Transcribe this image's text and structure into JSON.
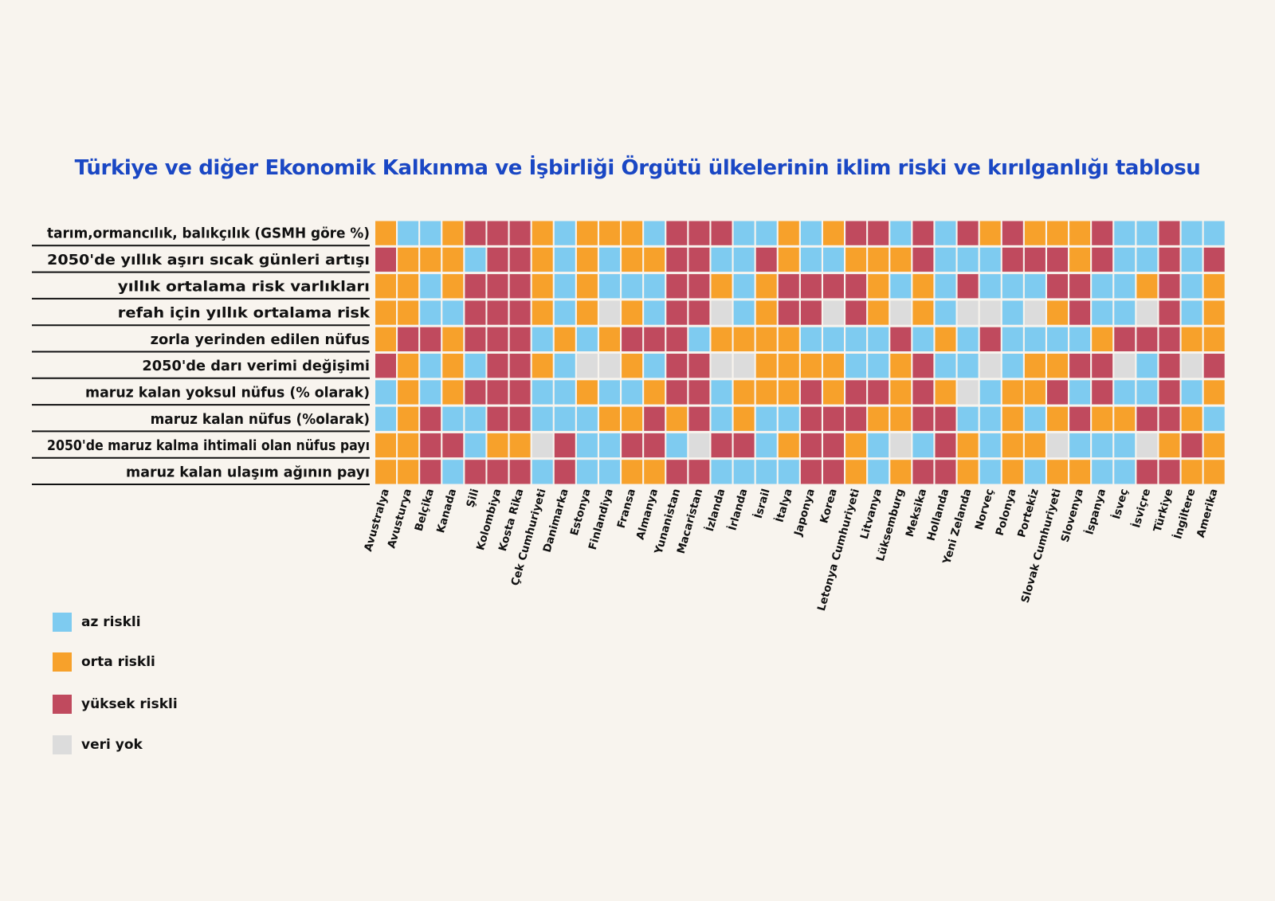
{
  "chart_data": {
    "type": "heatmap",
    "title": "Türkiye ve diğer Ekonomik Kalkınma ve İşbirliği Örgütü ülkelerinin iklim riski ve kırılganlığı tablosu",
    "rows": [
      "tarım,ormancılık, balıkçılık (GSMH göre %)",
      "2050'de yıllık aşırı sıcak günleri artışı",
      "yıllık ortalama risk varlıkları",
      "refah için yıllık ortalama risk",
      "zorla yerinden edilen nüfus",
      "2050'de darı verimi değişimi",
      "maruz kalan yoksul nüfus (% olarak)",
      "maruz kalan nüfus (%olarak)",
      "2050'de maruz kalma ihtimali olan nüfus payı",
      "maruz kalan ulaşım ağının payı"
    ],
    "columns": [
      "Avustralya",
      "Avusturya",
      "Belçika",
      "Kanada",
      "Şili",
      "Kolombiya",
      "Kosta Rika",
      "Çek Cumhuriyeti",
      "Danimarka",
      "Estonya",
      "Finlandiya",
      "Fransa",
      "Almanya",
      "Yunanistan",
      "Macaristan",
      "İzlanda",
      "İrlanda",
      "İsrail",
      "İtalya",
      "Japonya",
      "Korea",
      "Letonya Cumhuriyeti",
      "Litvanya",
      "Lüksemburg",
      "Meksika",
      "Hollanda",
      "Yeni Zelanda",
      "Norveç",
      "Polonya",
      "Portekiz",
      "Slovak Cumhuriyeti",
      "Slovenya",
      "İspanya",
      "İsveç",
      "İsviçre",
      "Türkiye",
      "İngiltere",
      "Amerika"
    ],
    "categories": [
      "az riskli",
      "orta riskli",
      "yüksek riskli",
      "veri yok"
    ],
    "colors": {
      "L": "#7ecbf0",
      "M": "#f7a12b",
      "H": "#c04a5e",
      "N": "#dcdcdc"
    },
    "legend_position": "bottom-left",
    "grid": [
      "MLLMHHHMLMMMLHHHLLMLMHHLHLHMHMMMHLLHLL",
      "HMMMLHHMLMLMMHHLLHMLLMMMHLLLHHHMHLLHLH",
      "MMLMHHHMLMLLLHHMLMHHHHMLMLHLLLHHLLMHLM",
      "MMLLHHHMLMNMLHHNLMHHNHMNMLNNLNMHLLNHLM",
      "MHHMHHHLMLMHHHLMMMMLLLLHLMLHLLLLMHHHMM",
      "HMLMLHHMLNNMLHHNNMMMMLLMHLLNLMMHHNLHNH",
      "LMLMHHHLLMLLMHHLMMMHMHHMHMNLMMHLHLLHLM",
      "LMHLLHHLLLMMHMHLMLLHHHMMHHLLMLMHMMHHML",
      "MMHHLMMNHLLHHLNHHLMHHMLNLHMLMMNLLLNMHM",
      "MMHLHHHLHLLMMHHLLLLHHMLMHHMLMLMMLLHHMM"
    ]
  },
  "legend": [
    {
      "key": "L",
      "label": "az riskli"
    },
    {
      "key": "M",
      "label": "orta riskli"
    },
    {
      "key": "H",
      "label": "yüksek riskli"
    },
    {
      "key": "N",
      "label": "veri yok"
    }
  ]
}
